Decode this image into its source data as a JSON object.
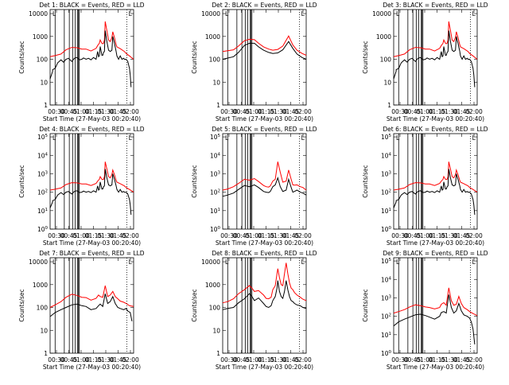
{
  "chart_data": [
    {
      "type": "line",
      "det": "1",
      "title": "Det 1: BLACK = Events, RED = LLD",
      "axis_style": "decimal",
      "ylim": [
        1,
        15000
      ],
      "black_t": [
        0,
        3,
        3,
        6,
        9,
        13,
        16,
        19,
        22,
        26,
        29,
        32,
        35,
        38,
        40,
        43,
        46,
        49,
        52,
        55,
        57,
        58,
        59,
        60,
        62,
        63,
        64,
        65,
        66,
        68,
        70,
        72,
        74,
        75,
        77,
        79,
        80,
        82,
        84,
        86,
        88,
        89,
        91,
        93,
        95,
        96,
        97
      ],
      "black_v": [
        14,
        30,
        35,
        40,
        70,
        95,
        75,
        100,
        110,
        80,
        110,
        120,
        95,
        100,
        115,
        100,
        110,
        95,
        120,
        100,
        220,
        130,
        140,
        360,
        150,
        150,
        200,
        220,
        1800,
        600,
        250,
        220,
        250,
        1000,
        500,
        230,
        140,
        100,
        140,
        100,
        110,
        100,
        100,
        80,
        40,
        20,
        6
      ],
      "red_t": [
        0,
        6,
        13,
        19,
        26,
        32,
        38,
        43,
        49,
        55,
        57,
        59,
        60,
        62,
        63,
        64,
        65,
        66,
        68,
        70,
        72,
        74,
        75,
        77,
        79,
        80,
        84,
        89,
        91,
        95,
        100
      ],
      "red_v": [
        130,
        145,
        170,
        260,
        330,
        320,
        280,
        280,
        230,
        300,
        400,
        500,
        700,
        500,
        480,
        500,
        700,
        4500,
        1800,
        700,
        600,
        900,
        1600,
        900,
        450,
        350,
        290,
        220,
        180,
        140,
        100
      ]
    },
    {
      "type": "line",
      "det": "2",
      "title": "Det 2: BLACK = Events, RED = LLD",
      "axis_style": "decimal",
      "ylim": [
        1,
        15000
      ],
      "black_t": [
        0,
        13,
        19,
        26,
        32,
        38,
        43,
        49,
        55,
        60,
        66,
        72,
        79,
        84,
        89,
        95,
        100
      ],
      "black_v": [
        100,
        130,
        200,
        400,
        500,
        500,
        350,
        250,
        200,
        180,
        190,
        260,
        600,
        300,
        170,
        120,
        100
      ],
      "red_t": [
        0,
        13,
        19,
        26,
        32,
        38,
        43,
        49,
        55,
        60,
        66,
        72,
        79,
        84,
        89,
        95,
        100
      ],
      "red_v": [
        220,
        260,
        380,
        650,
        750,
        720,
        500,
        350,
        280,
        250,
        270,
        380,
        1050,
        420,
        250,
        180,
        150
      ]
    },
    {
      "type": "line",
      "det": "3",
      "title": "Det 3: BLACK = Events, RED = LLD",
      "axis_style": "decimal",
      "ylim": [
        1,
        15000
      ],
      "black_t": [
        0,
        3,
        3,
        6,
        9,
        13,
        16,
        19,
        22,
        26,
        29,
        32,
        35,
        38,
        40,
        43,
        46,
        49,
        52,
        55,
        57,
        58,
        59,
        60,
        62,
        63,
        64,
        65,
        66,
        68,
        70,
        72,
        74,
        75,
        77,
        79,
        80,
        82,
        84,
        86,
        88,
        89,
        91,
        93,
        95,
        96,
        97
      ],
      "black_v": [
        14,
        30,
        35,
        40,
        70,
        95,
        75,
        100,
        110,
        80,
        110,
        120,
        95,
        100,
        115,
        100,
        110,
        95,
        120,
        100,
        220,
        130,
        140,
        360,
        150,
        150,
        200,
        220,
        1800,
        600,
        250,
        220,
        250,
        1000,
        500,
        230,
        140,
        100,
        140,
        100,
        110,
        100,
        100,
        80,
        40,
        20,
        6
      ],
      "red_t": [
        0,
        6,
        13,
        19,
        26,
        32,
        38,
        43,
        49,
        55,
        57,
        59,
        60,
        62,
        63,
        64,
        65,
        66,
        68,
        70,
        72,
        74,
        75,
        77,
        79,
        80,
        84,
        89,
        91,
        95,
        100
      ],
      "red_v": [
        130,
        145,
        170,
        260,
        330,
        320,
        280,
        280,
        230,
        300,
        400,
        500,
        700,
        500,
        480,
        500,
        700,
        4500,
        1800,
        700,
        600,
        900,
        1600,
        900,
        450,
        350,
        290,
        220,
        180,
        140,
        100
      ]
    },
    {
      "type": "line",
      "det": "4",
      "title": "Det 4: BLACK = Events, RED = LLD",
      "axis_style": "exp",
      "ylim": [
        1,
        150000
      ],
      "black_t": [
        0,
        3,
        3,
        6,
        9,
        13,
        16,
        19,
        22,
        26,
        29,
        32,
        35,
        38,
        40,
        43,
        46,
        49,
        52,
        55,
        57,
        58,
        59,
        60,
        62,
        63,
        64,
        65,
        66,
        68,
        70,
        72,
        74,
        75,
        77,
        79,
        80,
        82,
        84,
        86,
        88,
        89,
        91,
        93,
        95,
        96,
        97
      ],
      "black_v": [
        14,
        30,
        35,
        40,
        70,
        95,
        75,
        100,
        110,
        80,
        110,
        120,
        95,
        100,
        115,
        100,
        110,
        95,
        120,
        100,
        220,
        130,
        140,
        360,
        150,
        150,
        200,
        220,
        1800,
        600,
        250,
        220,
        250,
        1000,
        500,
        230,
        140,
        100,
        140,
        100,
        110,
        100,
        100,
        80,
        40,
        20,
        6
      ],
      "red_t": [
        0,
        6,
        13,
        19,
        26,
        32,
        38,
        43,
        49,
        55,
        57,
        59,
        60,
        62,
        63,
        64,
        65,
        66,
        68,
        70,
        72,
        74,
        75,
        77,
        79,
        80,
        84,
        89,
        91,
        95,
        100
      ],
      "red_v": [
        130,
        145,
        170,
        260,
        330,
        320,
        280,
        280,
        230,
        300,
        400,
        500,
        700,
        500,
        480,
        500,
        700,
        4500,
        1800,
        700,
        600,
        900,
        1600,
        900,
        450,
        350,
        290,
        220,
        180,
        140,
        100
      ]
    },
    {
      "type": "line",
      "det": "5",
      "title": "Det 5: BLACK = Events, RED = LLD",
      "axis_style": "exp",
      "ylim": [
        1,
        150000
      ],
      "black_t": [
        0,
        6,
        13,
        19,
        26,
        32,
        38,
        43,
        49,
        52,
        55,
        57,
        60,
        63,
        66,
        69,
        72,
        76,
        79,
        82,
        84,
        86,
        89,
        93,
        96,
        100
      ],
      "black_v": [
        60,
        70,
        90,
        140,
        230,
        200,
        250,
        180,
        110,
        100,
        95,
        110,
        200,
        250,
        600,
        200,
        110,
        130,
        500,
        180,
        100,
        110,
        130,
        100,
        90,
        70
      ],
      "red_t": [
        0,
        6,
        13,
        19,
        26,
        32,
        38,
        43,
        49,
        52,
        55,
        57,
        60,
        63,
        66,
        69,
        72,
        76,
        79,
        82,
        84,
        86,
        89,
        93,
        96,
        100
      ],
      "red_v": [
        130,
        150,
        200,
        300,
        500,
        450,
        550,
        380,
        230,
        200,
        190,
        220,
        400,
        500,
        4500,
        1200,
        350,
        400,
        1600,
        500,
        250,
        240,
        250,
        200,
        180,
        130
      ]
    },
    {
      "type": "line",
      "det": "6",
      "title": "Det 6: BLACK = Events, RED = LLD",
      "axis_style": "exp",
      "ylim": [
        1,
        150000
      ],
      "black_t": [
        0,
        3,
        3,
        6,
        9,
        13,
        16,
        19,
        22,
        26,
        29,
        32,
        35,
        38,
        40,
        43,
        46,
        49,
        52,
        55,
        57,
        58,
        59,
        60,
        62,
        63,
        64,
        65,
        66,
        68,
        70,
        72,
        74,
        75,
        77,
        79,
        80,
        82,
        84,
        86,
        88,
        89,
        91,
        93,
        95,
        96,
        97
      ],
      "black_v": [
        14,
        30,
        35,
        40,
        70,
        95,
        75,
        100,
        110,
        80,
        110,
        120,
        95,
        100,
        115,
        100,
        110,
        95,
        120,
        100,
        220,
        130,
        140,
        360,
        150,
        150,
        200,
        220,
        1800,
        600,
        250,
        220,
        250,
        1000,
        500,
        230,
        140,
        100,
        140,
        100,
        110,
        100,
        100,
        80,
        40,
        20,
        6
      ],
      "red_t": [
        0,
        6,
        13,
        19,
        26,
        32,
        38,
        43,
        49,
        55,
        57,
        59,
        60,
        62,
        63,
        64,
        65,
        66,
        68,
        70,
        72,
        74,
        75,
        77,
        79,
        80,
        84,
        89,
        91,
        95,
        100
      ],
      "red_v": [
        130,
        145,
        170,
        260,
        330,
        320,
        280,
        280,
        230,
        300,
        400,
        500,
        700,
        500,
        480,
        500,
        700,
        4500,
        1800,
        700,
        600,
        900,
        1600,
        900,
        450,
        350,
        290,
        220,
        180,
        140,
        100
      ]
    },
    {
      "type": "line",
      "det": "7",
      "title": "Det 7: BLACK = Events, RED = LLD",
      "axis_style": "decimal",
      "ylim": [
        1,
        15000
      ],
      "black_t": [
        0,
        6,
        13,
        19,
        26,
        32,
        38,
        43,
        49,
        55,
        58,
        60,
        63,
        66,
        69,
        72,
        75,
        78,
        81,
        84,
        88,
        91,
        93,
        96,
        98
      ],
      "black_v": [
        40,
        60,
        80,
        100,
        130,
        140,
        120,
        110,
        80,
        90,
        120,
        140,
        110,
        400,
        150,
        180,
        300,
        150,
        100,
        90,
        80,
        90,
        70,
        60,
        25
      ],
      "red_t": [
        0,
        6,
        13,
        19,
        26,
        32,
        38,
        43,
        49,
        55,
        58,
        60,
        63,
        66,
        69,
        72,
        75,
        78,
        81,
        84,
        88,
        91,
        95,
        100
      ],
      "red_v": [
        100,
        130,
        180,
        280,
        380,
        340,
        280,
        270,
        210,
        250,
        350,
        300,
        280,
        900,
        300,
        350,
        500,
        300,
        240,
        190,
        170,
        150,
        120,
        110
      ]
    },
    {
      "type": "line",
      "det": "8",
      "title": "Det 8: BLACK = Events, RED = LLD",
      "axis_style": "decimal",
      "ylim": [
        1,
        15000
      ],
      "black_t": [
        0,
        6,
        13,
        19,
        26,
        32,
        35,
        38,
        43,
        49,
        52,
        55,
        58,
        60,
        63,
        65,
        66,
        68,
        70,
        72,
        74,
        76,
        78,
        80,
        82,
        84,
        86,
        89,
        93,
        96,
        100
      ],
      "black_v": [
        80,
        90,
        100,
        160,
        240,
        400,
        300,
        200,
        260,
        150,
        110,
        100,
        120,
        200,
        300,
        700,
        1500,
        500,
        300,
        250,
        500,
        1500,
        600,
        300,
        200,
        180,
        150,
        130,
        120,
        100,
        90
      ],
      "red_t": [
        0,
        6,
        13,
        19,
        26,
        32,
        35,
        38,
        43,
        49,
        52,
        55,
        58,
        60,
        63,
        65,
        66,
        68,
        70,
        72,
        74,
        76,
        78,
        80,
        82,
        84,
        86,
        89,
        93,
        96,
        100
      ],
      "red_v": [
        160,
        180,
        240,
        400,
        600,
        900,
        700,
        500,
        550,
        350,
        250,
        240,
        280,
        600,
        900,
        3000,
        5000,
        2000,
        1000,
        900,
        3000,
        9000,
        3000,
        1200,
        700,
        600,
        450,
        350,
        280,
        230,
        200
      ]
    },
    {
      "type": "line",
      "det": "9",
      "title": "Det 9: BLACK = Events, RED = LLD",
      "axis_style": "exp",
      "ylim": [
        1,
        150000
      ],
      "black_t": [
        0,
        6,
        13,
        19,
        26,
        32,
        38,
        43,
        49,
        55,
        57,
        60,
        63,
        66,
        69,
        72,
        75,
        78,
        81,
        84,
        88,
        91,
        93,
        95,
        96,
        97
      ],
      "black_v": [
        30,
        50,
        70,
        90,
        120,
        130,
        110,
        90,
        70,
        100,
        160,
        180,
        150,
        1500,
        300,
        150,
        200,
        500,
        200,
        120,
        100,
        80,
        50,
        20,
        8,
        3
      ],
      "red_t": [
        0,
        6,
        13,
        19,
        26,
        32,
        38,
        43,
        49,
        55,
        57,
        60,
        63,
        66,
        69,
        72,
        75,
        78,
        81,
        84,
        88,
        91,
        95,
        100
      ],
      "red_v": [
        150,
        180,
        230,
        320,
        420,
        380,
        320,
        300,
        250,
        300,
        450,
        550,
        400,
        3500,
        700,
        400,
        450,
        1200,
        500,
        300,
        230,
        180,
        140,
        110
      ]
    }
  ],
  "common": {
    "ylabel": "Counts/sec",
    "xlabel": "Start Time (27-May-03 00:20:40)",
    "xticks": [
      "00:30",
      "00:45",
      "01:00",
      "01:15",
      "01:30",
      "01:45",
      "02:00"
    ],
    "yticks_decimal": [
      "1",
      "10",
      "100",
      "1000",
      "10000"
    ],
    "yticks_exp_base": "10",
    "yticks_exp": [
      "0",
      "1",
      "2",
      "3",
      "4",
      "5"
    ],
    "corner_mark": "L",
    "colors": {
      "events": "#000000",
      "lld": "#ff0000"
    },
    "vlines_pct": [
      6,
      17,
      23,
      27,
      30,
      33,
      34,
      35
    ]
  }
}
